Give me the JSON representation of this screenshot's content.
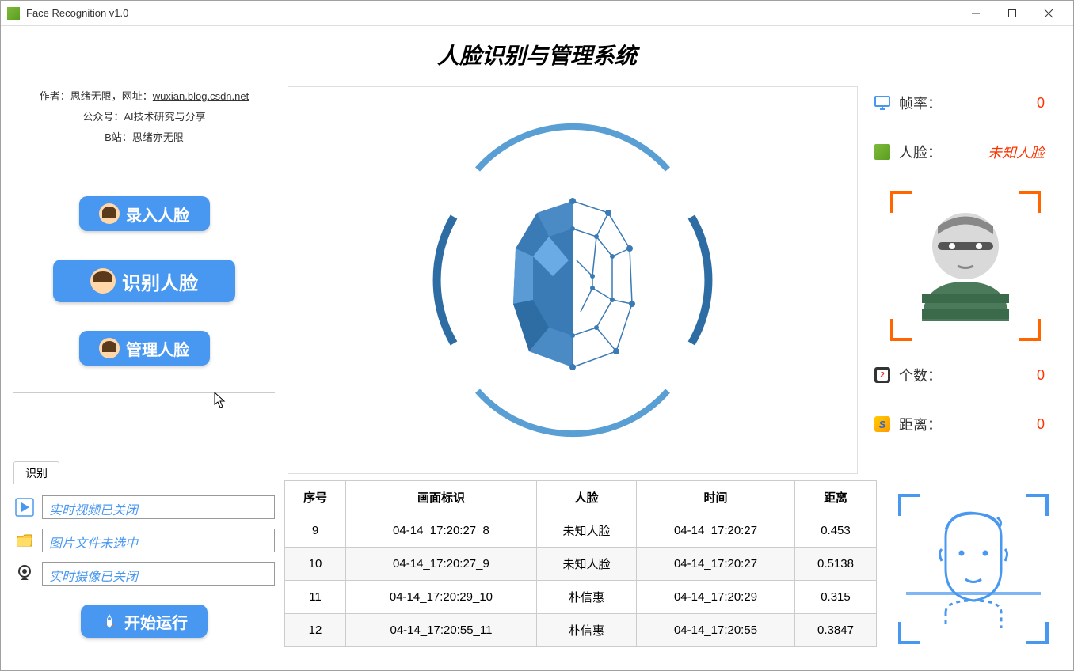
{
  "window": {
    "title": "Face Recognition v1.0"
  },
  "app_title": "人脸识别与管理系统",
  "author": {
    "line1_prefix": "作者：思绪无限，网址：",
    "line1_link": "wuxian.blog.csdn.net",
    "line2": "公众号：AI技术研究与分享",
    "line3": "B站：思绪亦无限"
  },
  "buttons": {
    "enroll": "录入人脸",
    "recognize": "识别人脸",
    "manage": "管理人脸",
    "run": "开始运行"
  },
  "stats": {
    "fps_label": "帧率：",
    "fps_value": "0",
    "face_label": "人脸：",
    "face_value": "未知人脸",
    "count_label": "个数：",
    "count_value": "0",
    "dist_label": "距离：",
    "dist_value": "0"
  },
  "tab": {
    "label": "识别"
  },
  "sources": {
    "video": "实时视频已关闭",
    "image": "图片文件未选中",
    "camera": "实时摄像已关闭"
  },
  "table": {
    "columns": [
      "序号",
      "画面标识",
      "人脸",
      "时间",
      "距离"
    ],
    "rows": [
      [
        "9",
        "04-14_17:20:27_8",
        "未知人脸",
        "04-14_17:20:27",
        "0.453"
      ],
      [
        "10",
        "04-14_17:20:27_9",
        "未知人脸",
        "04-14_17:20:27",
        "0.5138"
      ],
      [
        "11",
        "04-14_17:20:29_10",
        "朴信惠",
        "04-14_17:20:29",
        "0.315"
      ],
      [
        "12",
        "04-14_17:20:55_11",
        "朴信惠",
        "04-14_17:20:55",
        "0.3847"
      ]
    ]
  },
  "colors": {
    "accent_blue": "#4898f1",
    "accent_orange": "#ff6600",
    "value_red": "#ff3300",
    "border": "#cccccc",
    "bg": "#ffffff"
  }
}
